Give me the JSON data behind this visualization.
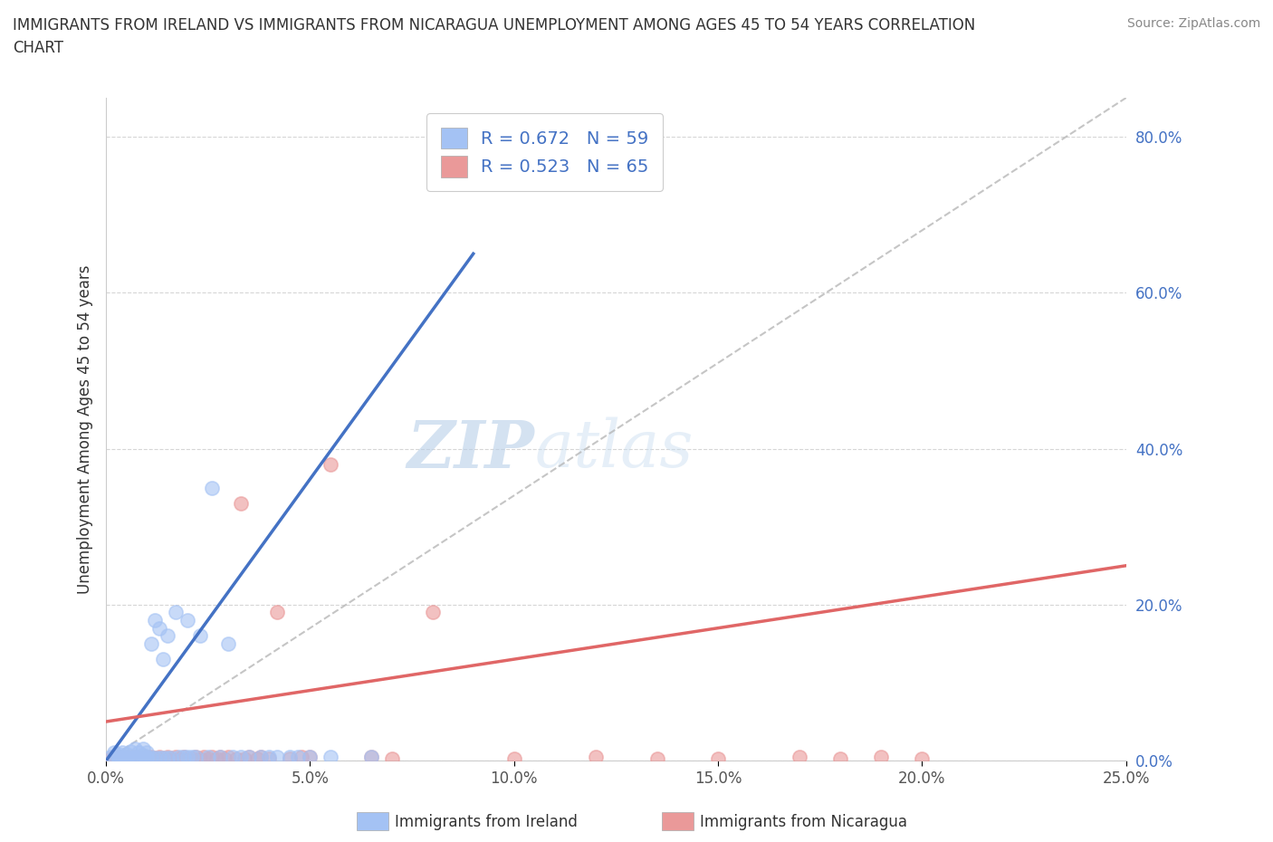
{
  "title": "IMMIGRANTS FROM IRELAND VS IMMIGRANTS FROM NICARAGUA UNEMPLOYMENT AMONG AGES 45 TO 54 YEARS CORRELATION\nCHART",
  "source": "Source: ZipAtlas.com",
  "ylabel": "Unemployment Among Ages 45 to 54 years",
  "xlim": [
    0.0,
    0.25
  ],
  "ylim": [
    0.0,
    0.85
  ],
  "x_ticks": [
    0.0,
    0.05,
    0.1,
    0.15,
    0.2,
    0.25
  ],
  "x_tick_labels": [
    "0.0%",
    "5.0%",
    "10.0%",
    "15.0%",
    "20.0%",
    "25.0%"
  ],
  "y_ticks": [
    0.0,
    0.2,
    0.4,
    0.6,
    0.8
  ],
  "y_tick_labels": [
    "0.0%",
    "20.0%",
    "40.0%",
    "60.0%",
    "80.0%"
  ],
  "ireland_color": "#a4c2f4",
  "nicaragua_color": "#ea9999",
  "ireland_line_color": "#4472c4",
  "nicaragua_line_color": "#e06666",
  "diagonal_color": "#b7b7b7",
  "R_ireland": 0.672,
  "N_ireland": 59,
  "R_nicaragua": 0.523,
  "N_nicaragua": 65,
  "watermark_zip": "ZIP",
  "watermark_atlas": "atlas",
  "legend_ireland": "Immigrants from Ireland",
  "legend_nicaragua": "Immigrants from Nicaragua",
  "ireland_scatter_x": [
    0.001,
    0.002,
    0.002,
    0.003,
    0.003,
    0.003,
    0.004,
    0.004,
    0.004,
    0.005,
    0.005,
    0.005,
    0.006,
    0.006,
    0.007,
    0.007,
    0.007,
    0.008,
    0.008,
    0.009,
    0.009,
    0.009,
    0.01,
    0.01,
    0.01,
    0.011,
    0.011,
    0.012,
    0.012,
    0.013,
    0.013,
    0.014,
    0.014,
    0.015,
    0.015,
    0.016,
    0.017,
    0.018,
    0.019,
    0.02,
    0.02,
    0.021,
    0.022,
    0.023,
    0.025,
    0.026,
    0.028,
    0.03,
    0.031,
    0.033,
    0.035,
    0.038,
    0.04,
    0.042,
    0.045,
    0.047,
    0.05,
    0.055,
    0.065
  ],
  "ireland_scatter_y": [
    0.005,
    0.002,
    0.01,
    0.001,
    0.005,
    0.008,
    0.002,
    0.005,
    0.01,
    0.002,
    0.005,
    0.008,
    0.003,
    0.012,
    0.003,
    0.005,
    0.015,
    0.003,
    0.01,
    0.003,
    0.007,
    0.015,
    0.003,
    0.005,
    0.01,
    0.003,
    0.15,
    0.003,
    0.18,
    0.004,
    0.17,
    0.004,
    0.13,
    0.004,
    0.16,
    0.004,
    0.19,
    0.005,
    0.005,
    0.005,
    0.18,
    0.005,
    0.005,
    0.16,
    0.005,
    0.35,
    0.005,
    0.15,
    0.005,
    0.005,
    0.005,
    0.005,
    0.005,
    0.005,
    0.005,
    0.005,
    0.005,
    0.005,
    0.005
  ],
  "nicaragua_scatter_x": [
    0.001,
    0.002,
    0.002,
    0.003,
    0.003,
    0.004,
    0.004,
    0.005,
    0.005,
    0.006,
    0.006,
    0.007,
    0.007,
    0.008,
    0.008,
    0.009,
    0.009,
    0.01,
    0.01,
    0.011,
    0.011,
    0.012,
    0.013,
    0.013,
    0.014,
    0.015,
    0.015,
    0.016,
    0.017,
    0.018,
    0.019,
    0.02,
    0.021,
    0.022,
    0.023,
    0.024,
    0.025,
    0.026,
    0.027,
    0.028,
    0.029,
    0.03,
    0.032,
    0.033,
    0.034,
    0.035,
    0.037,
    0.038,
    0.04,
    0.042,
    0.045,
    0.048,
    0.05,
    0.055,
    0.065,
    0.07,
    0.08,
    0.1,
    0.12,
    0.135,
    0.15,
    0.17,
    0.18,
    0.19,
    0.2
  ],
  "nicaragua_scatter_y": [
    0.002,
    0.002,
    0.005,
    0.002,
    0.005,
    0.002,
    0.005,
    0.002,
    0.005,
    0.002,
    0.005,
    0.002,
    0.005,
    0.002,
    0.005,
    0.002,
    0.005,
    0.002,
    0.005,
    0.002,
    0.005,
    0.002,
    0.002,
    0.005,
    0.002,
    0.002,
    0.005,
    0.002,
    0.005,
    0.002,
    0.005,
    0.002,
    0.002,
    0.005,
    0.002,
    0.005,
    0.002,
    0.005,
    0.002,
    0.005,
    0.002,
    0.005,
    0.002,
    0.33,
    0.002,
    0.005,
    0.002,
    0.005,
    0.002,
    0.19,
    0.002,
    0.005,
    0.005,
    0.38,
    0.005,
    0.002,
    0.19,
    0.002,
    0.005,
    0.002,
    0.002,
    0.005,
    0.002,
    0.005,
    0.002
  ],
  "ireland_line_x0": 0.0,
  "ireland_line_y0": 0.0,
  "ireland_line_x1": 0.09,
  "ireland_line_y1": 0.65,
  "nicaragua_line_x0": 0.0,
  "nicaragua_line_y0": 0.05,
  "nicaragua_line_x1": 0.25,
  "nicaragua_line_y1": 0.25
}
